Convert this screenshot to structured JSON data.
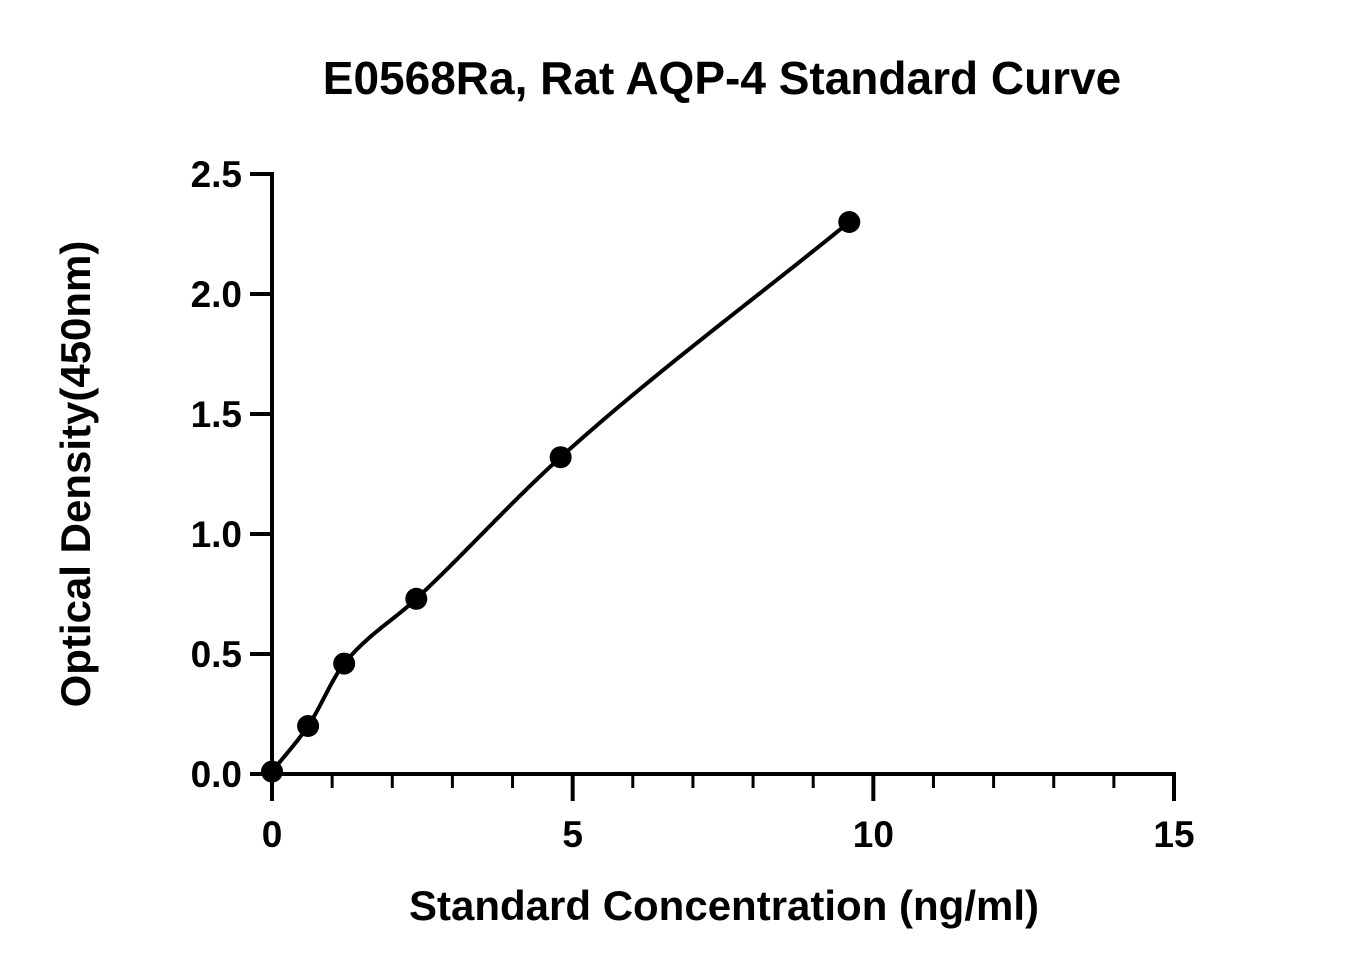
{
  "chart_data": {
    "type": "scatter",
    "title": "E0568Ra, Rat AQP-4 Standard Curve",
    "xlabel": "Standard Concentration (ng/ml)",
    "ylabel": "Optical Density(450nm)",
    "xlim": [
      0,
      15
    ],
    "ylim": [
      0,
      2.5
    ],
    "x_ticks": [
      0,
      5,
      10,
      15
    ],
    "x_tick_labels": [
      "0",
      "5",
      "10",
      "15"
    ],
    "x_minor_step": 1,
    "y_ticks": [
      0,
      0.5,
      1.0,
      1.5,
      2.0,
      2.5
    ],
    "y_tick_labels": [
      "0.0",
      "0.5",
      "1.0",
      "1.5",
      "2.0",
      "2.5"
    ],
    "grid": false,
    "legend": "none",
    "series": [
      {
        "x": [
          0,
          0.6,
          1.2,
          2.4,
          4.8,
          9.6
        ],
        "y": [
          0.01,
          0.2,
          0.46,
          0.73,
          1.32,
          2.3
        ],
        "marker": "filled-circle",
        "fit_curve": true
      }
    ],
    "colors": {
      "marker": "#000000",
      "line": "#000000",
      "axes": "#000000"
    }
  }
}
